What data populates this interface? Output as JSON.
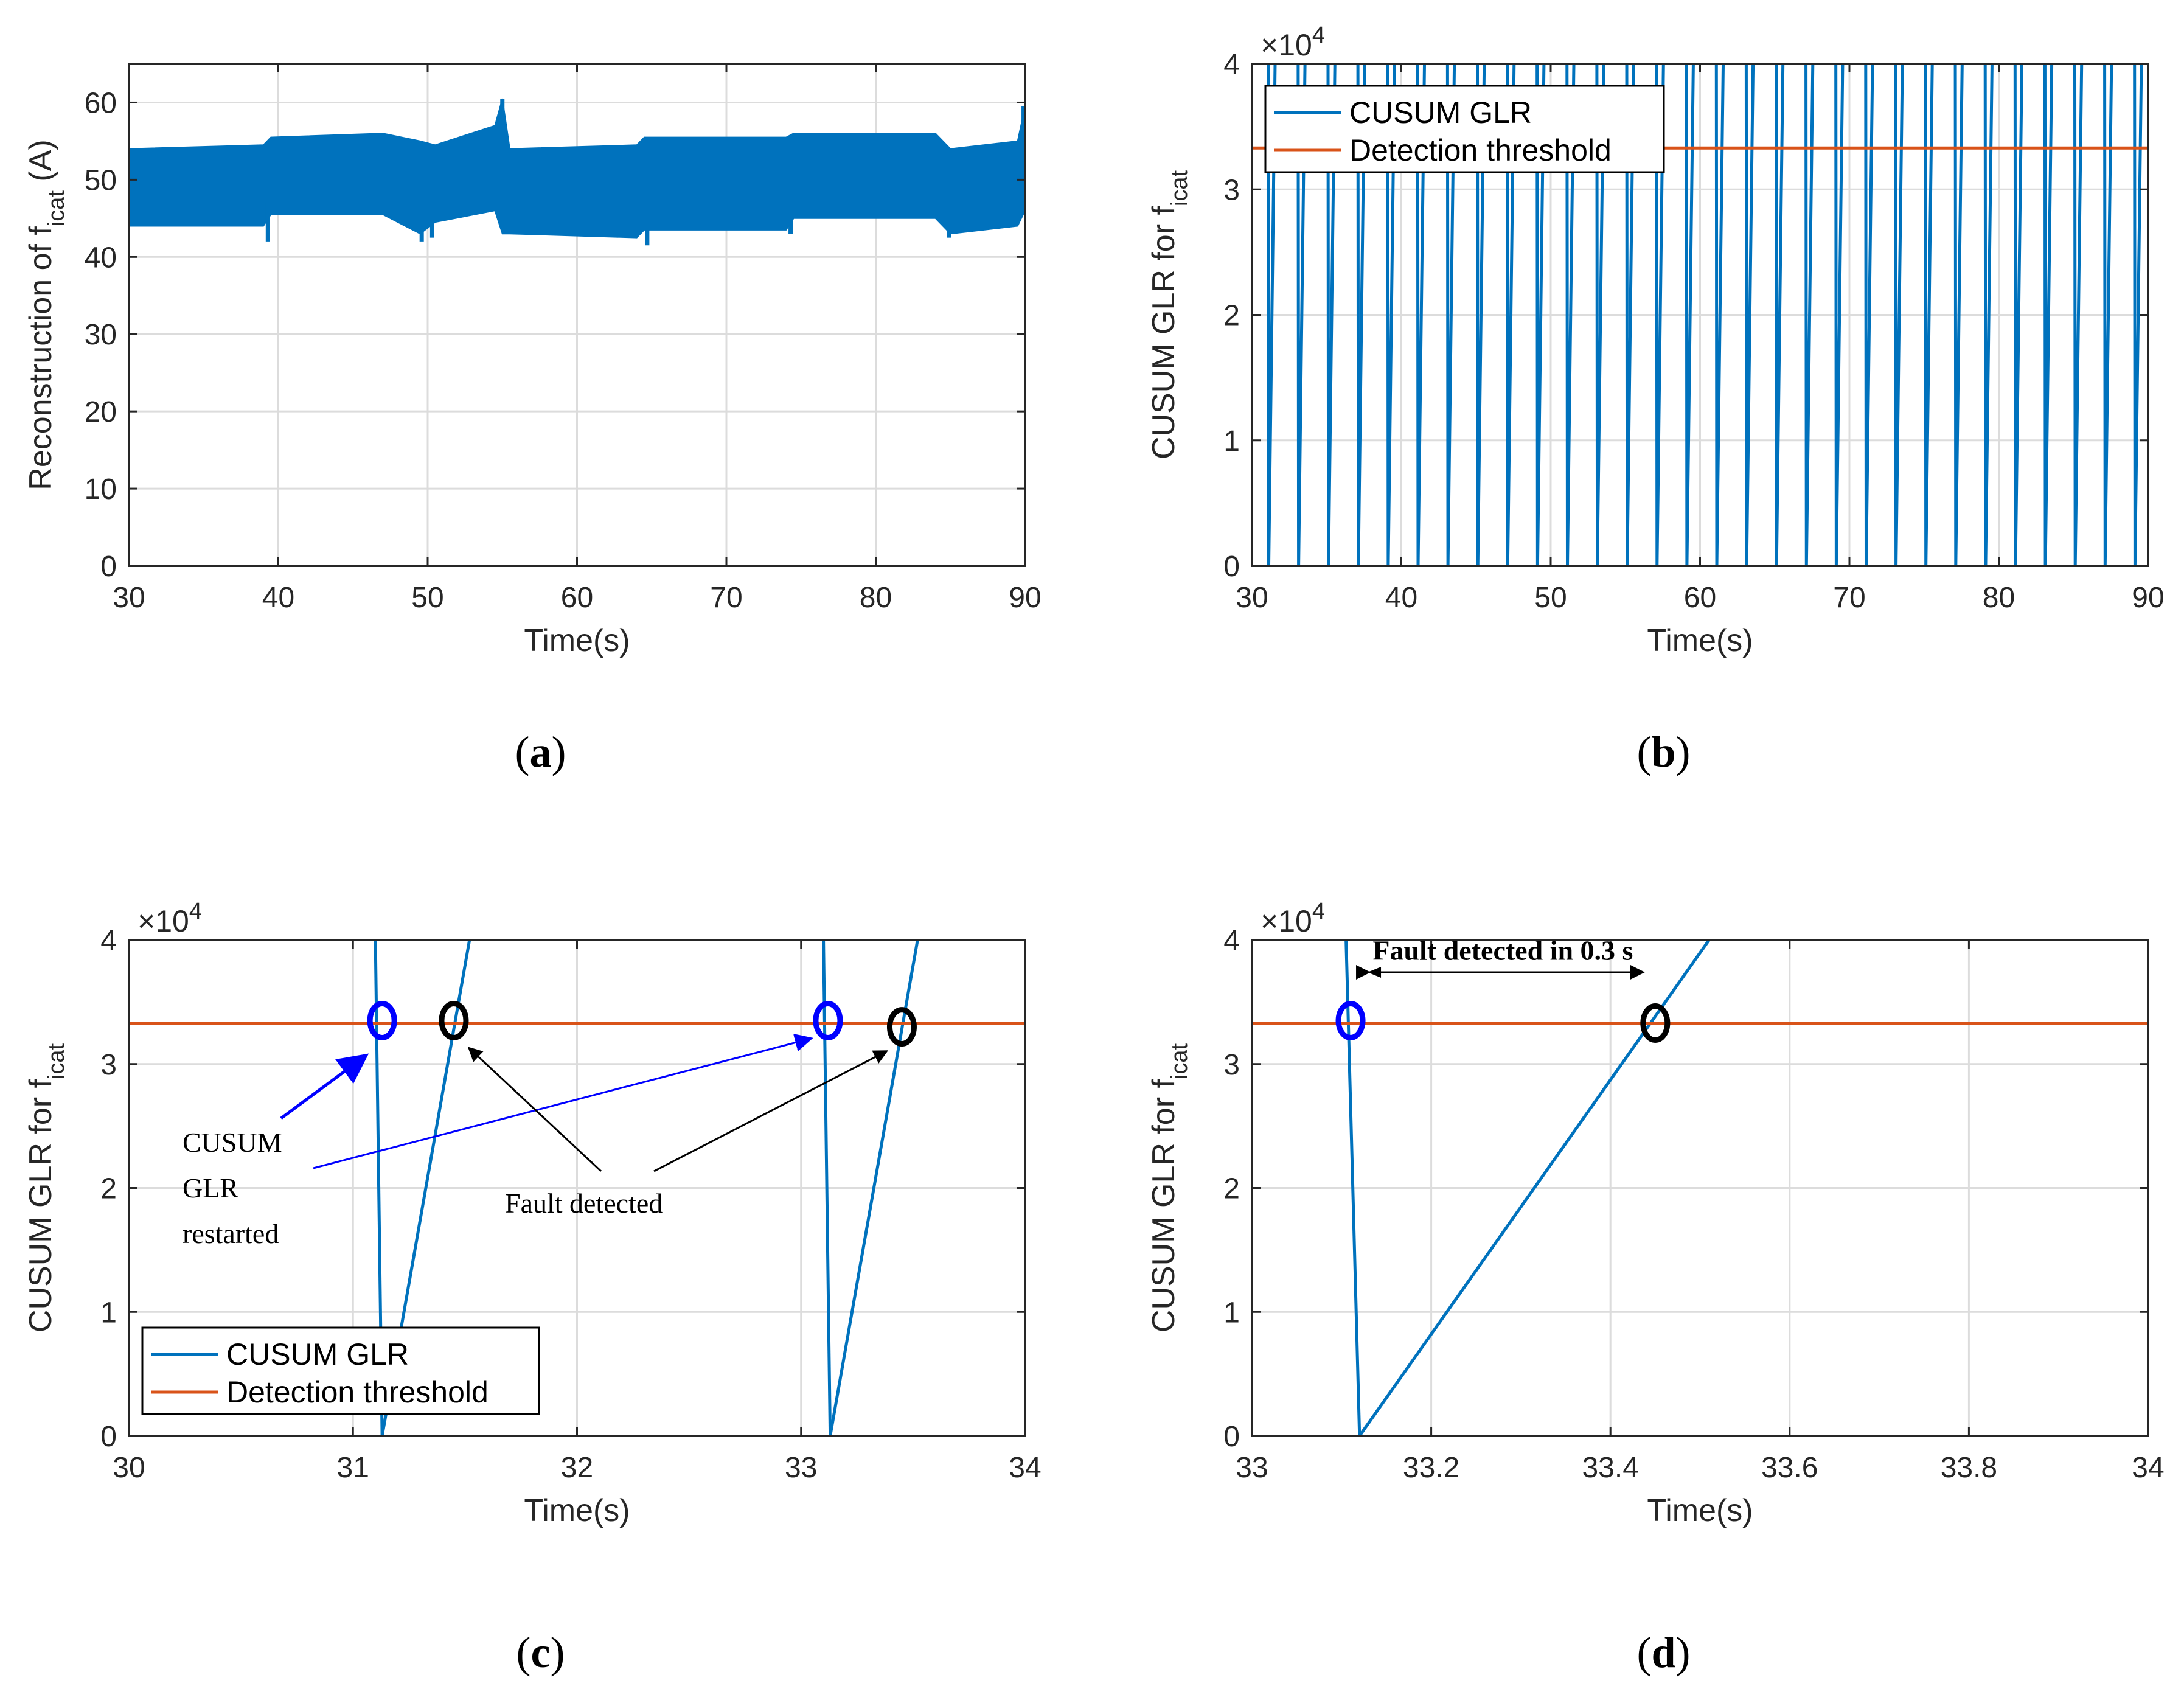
{
  "colors": {
    "series": "#0072BD",
    "threshold": "#D95319",
    "grid": "#dcdcdc",
    "axis": "#262626",
    "restart_marker": "#0000FF",
    "detect_marker": "#000000"
  },
  "chart_data": [
    {
      "id": "a",
      "type": "area",
      "caption": "(a)",
      "xlabel": "Time(s)",
      "ylabel_main": "Reconstruction of f",
      "ylabel_sub": "icat",
      "ylabel_unit": " (A)",
      "xlim": [
        30,
        90
      ],
      "ylim": [
        0,
        65
      ],
      "xticks": [
        30,
        40,
        50,
        60,
        70,
        80,
        90
      ],
      "yticks": [
        0,
        10,
        20,
        30,
        40,
        50,
        60
      ],
      "grid": true,
      "band": {
        "name": "Reconstruction of f_icat",
        "x": [
          30,
          39,
          39.5,
          47,
          49.5,
          50.5,
          54.5,
          55,
          55.5,
          64,
          64.5,
          74,
          74.5,
          84,
          85,
          89.5,
          90
        ],
        "upper": [
          54,
          54.5,
          55.5,
          56,
          55,
          54.5,
          57,
          60.5,
          54,
          54.5,
          55.5,
          55.5,
          56,
          56,
          54,
          55,
          59.5
        ],
        "lower": [
          44,
          44,
          45.5,
          45.5,
          43,
          44.5,
          46,
          43,
          43,
          42.5,
          43.5,
          43.5,
          45,
          45,
          43,
          44,
          46
        ]
      },
      "spikes": [
        {
          "x": 39.3,
          "y": 42
        },
        {
          "x": 49.6,
          "y": 42
        },
        {
          "x": 50.3,
          "y": 42.5
        },
        {
          "x": 55.0,
          "y": 60.5
        },
        {
          "x": 64.7,
          "y": 41.5
        },
        {
          "x": 74.3,
          "y": 43
        },
        {
          "x": 84.9,
          "y": 42.5
        },
        {
          "x": 89.9,
          "y": 59.5
        }
      ]
    },
    {
      "id": "b",
      "type": "line",
      "caption": "(b)",
      "xlabel": "Time(s)",
      "ylabel_main": "CUSUM GLR for f",
      "ylabel_sub": "icat",
      "y_exponent_label": "×10",
      "y_exponent_power": "4",
      "xlim": [
        30,
        90
      ],
      "ylim": [
        0,
        4
      ],
      "xticks": [
        30,
        40,
        50,
        60,
        70,
        80,
        90
      ],
      "yticks": [
        0,
        1,
        2,
        3,
        4
      ],
      "grid": true,
      "legend": {
        "position": "top-left",
        "entries": [
          "CUSUM GLR",
          "Detection threshold"
        ]
      },
      "threshold": 3.33,
      "restart_period_s": 2.0,
      "first_restart_s": 31.12,
      "rise_duration_s": 0.45
    },
    {
      "id": "c",
      "type": "line",
      "caption": "(c)",
      "xlabel": "Time(s)",
      "ylabel_main": "CUSUM GLR for f",
      "ylabel_sub": "icat",
      "y_exponent_label": "×10",
      "y_exponent_power": "4",
      "xlim": [
        30,
        34
      ],
      "ylim": [
        0,
        4
      ],
      "xticks": [
        30,
        31,
        32,
        33,
        34
      ],
      "yticks": [
        0,
        1,
        2,
        3,
        4
      ],
      "grid": true,
      "legend": {
        "position": "bottom-left",
        "entries": [
          "CUSUM GLR",
          "Detection threshold"
        ]
      },
      "threshold": 3.33,
      "series": [
        {
          "name": "CUSUM GLR",
          "x": [
            31.1,
            31.13
          ],
          "y": [
            4.0,
            0
          ]
        },
        {
          "name": "CUSUM GLR",
          "x": [
            31.13,
            31.52
          ],
          "y": [
            0,
            4.0
          ]
        },
        {
          "name": "CUSUM GLR",
          "x": [
            33.1,
            33.13
          ],
          "y": [
            4.0,
            0
          ]
        },
        {
          "name": "CUSUM GLR",
          "x": [
            33.13,
            33.52
          ],
          "y": [
            0,
            4.0
          ]
        }
      ],
      "restart_markers": [
        {
          "x": 31.13,
          "y": 3.35
        },
        {
          "x": 33.12,
          "y": 3.35
        }
      ],
      "detect_markers": [
        {
          "x": 31.45,
          "y": 3.35
        },
        {
          "x": 33.45,
          "y": 3.3
        }
      ],
      "annotations": {
        "restart_label_lines": [
          "CUSUM",
          "GLR",
          "restarted"
        ],
        "detect_label": "Fault detected"
      }
    },
    {
      "id": "d",
      "type": "line",
      "caption": "(d)",
      "xlabel": "Time(s)",
      "ylabel_main": "CUSUM GLR for f",
      "ylabel_sub": "icat",
      "y_exponent_label": "×10",
      "y_exponent_power": "4",
      "xlim": [
        33,
        34
      ],
      "ylim": [
        0,
        4
      ],
      "xticks": [
        33,
        33.2,
        33.4,
        33.6,
        33.8,
        34
      ],
      "xtick_labels": [
        "33",
        "33.2",
        "33.4",
        "33.6",
        "33.8",
        "34"
      ],
      "yticks": [
        0,
        1,
        2,
        3,
        4
      ],
      "grid": true,
      "threshold": 3.33,
      "series": [
        {
          "name": "CUSUM GLR",
          "x": [
            33.105,
            33.12
          ],
          "y": [
            4.0,
            0
          ]
        },
        {
          "name": "CUSUM GLR",
          "x": [
            33.12,
            33.51
          ],
          "y": [
            0,
            4.0
          ]
        }
      ],
      "restart_markers": [
        {
          "x": 33.11,
          "y": 3.35
        }
      ],
      "detect_markers": [
        {
          "x": 33.45,
          "y": 3.33
        }
      ],
      "annotations": {
        "interval_label": "Fault detected in 0.3 s"
      }
    }
  ]
}
